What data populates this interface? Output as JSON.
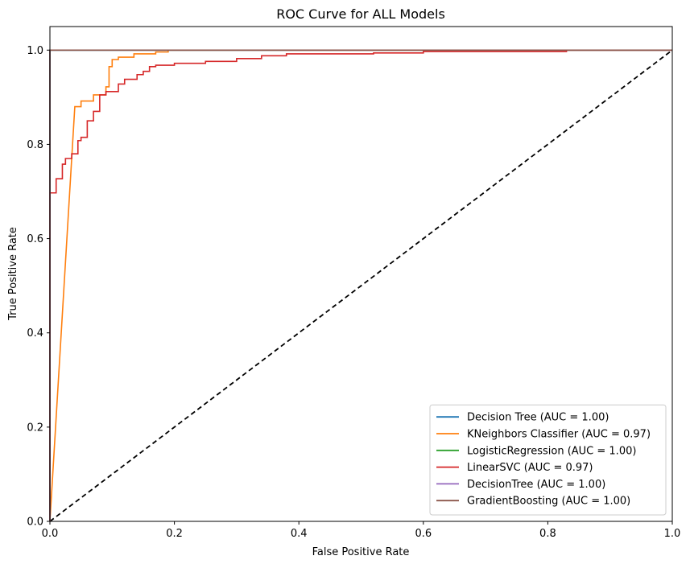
{
  "chart_data": {
    "type": "line",
    "title": "ROC Curve for ALL Models",
    "xlabel": "False Positive Rate",
    "ylabel": "True Positive Rate",
    "xlim": [
      0,
      1
    ],
    "ylim": [
      0,
      1.05
    ],
    "grid": false,
    "legend_position": "lower-right",
    "x_ticks": [
      {
        "value": 0.0,
        "label": "0.0"
      },
      {
        "value": 0.2,
        "label": "0.2"
      },
      {
        "value": 0.4,
        "label": "0.4"
      },
      {
        "value": 0.6,
        "label": "0.6"
      },
      {
        "value": 0.8,
        "label": "0.8"
      },
      {
        "value": 1.0,
        "label": "1.0"
      }
    ],
    "y_ticks": [
      {
        "value": 0.0,
        "label": "0.0"
      },
      {
        "value": 0.2,
        "label": "0.2"
      },
      {
        "value": 0.4,
        "label": "0.4"
      },
      {
        "value": 0.6,
        "label": "0.6"
      },
      {
        "value": 0.8,
        "label": "0.8"
      },
      {
        "value": 1.0,
        "label": "1.0"
      }
    ],
    "series": [
      {
        "name": "Decision Tree (AUC = 1.00)",
        "color": "#1f77b4",
        "x": [
          0,
          0,
          1
        ],
        "y": [
          0,
          1,
          1
        ]
      },
      {
        "name": "KNeighbors Classifier (AUC = 0.97)",
        "color": "#ff7f0e",
        "x": [
          0,
          0.04,
          0.04,
          0.05,
          0.05,
          0.07,
          0.07,
          0.09,
          0.09,
          0.095,
          0.095,
          0.1,
          0.1,
          0.11,
          0.11,
          0.135,
          0.135,
          0.17,
          0.17,
          0.19,
          0.19,
          1.0
        ],
        "y": [
          0,
          0.88,
          0.88,
          0.88,
          0.892,
          0.892,
          0.905,
          0.905,
          0.922,
          0.922,
          0.965,
          0.965,
          0.98,
          0.98,
          0.985,
          0.985,
          0.992,
          0.992,
          0.996,
          0.996,
          1.0,
          1.0
        ]
      },
      {
        "name": "LogisticRegression (AUC = 1.00)",
        "color": "#2ca02c",
        "x": [
          0,
          0,
          1
        ],
        "y": [
          0,
          1,
          1
        ]
      },
      {
        "name": "LinearSVC (AUC = 0.97)",
        "color": "#d62728",
        "x": [
          0,
          0,
          0.01,
          0.01,
          0.02,
          0.02,
          0.025,
          0.025,
          0.035,
          0.035,
          0.045,
          0.045,
          0.05,
          0.05,
          0.06,
          0.06,
          0.07,
          0.07,
          0.08,
          0.08,
          0.09,
          0.09,
          0.11,
          0.11,
          0.12,
          0.12,
          0.14,
          0.14,
          0.15,
          0.15,
          0.16,
          0.16,
          0.17,
          0.17,
          0.2,
          0.2,
          0.25,
          0.25,
          0.3,
          0.3,
          0.34,
          0.34,
          0.38,
          0.38,
          0.52,
          0.52,
          0.6,
          0.6,
          0.83,
          0.83,
          1.0
        ],
        "y": [
          0,
          0.697,
          0.697,
          0.727,
          0.727,
          0.758,
          0.758,
          0.77,
          0.77,
          0.78,
          0.78,
          0.808,
          0.808,
          0.815,
          0.815,
          0.85,
          0.85,
          0.87,
          0.87,
          0.905,
          0.905,
          0.912,
          0.912,
          0.928,
          0.928,
          0.938,
          0.938,
          0.948,
          0.948,
          0.955,
          0.955,
          0.965,
          0.965,
          0.968,
          0.968,
          0.972,
          0.972,
          0.976,
          0.976,
          0.982,
          0.982,
          0.988,
          0.988,
          0.992,
          0.992,
          0.994,
          0.994,
          0.997,
          0.997,
          1.0,
          1.0
        ]
      },
      {
        "name": "DecisionTree (AUC = 1.00)",
        "color": "#9467bd",
        "x": [
          0,
          0,
          1
        ],
        "y": [
          0,
          1,
          1
        ]
      },
      {
        "name": "GradientBoosting (AUC = 1.00)",
        "color": "#8c564b",
        "x": [
          0,
          0,
          1
        ],
        "y": [
          0,
          1,
          1
        ]
      }
    ],
    "reference_line": {
      "name": "chance",
      "color": "#000000",
      "style": "dashed",
      "x": [
        0,
        1
      ],
      "y": [
        0,
        1
      ]
    }
  }
}
